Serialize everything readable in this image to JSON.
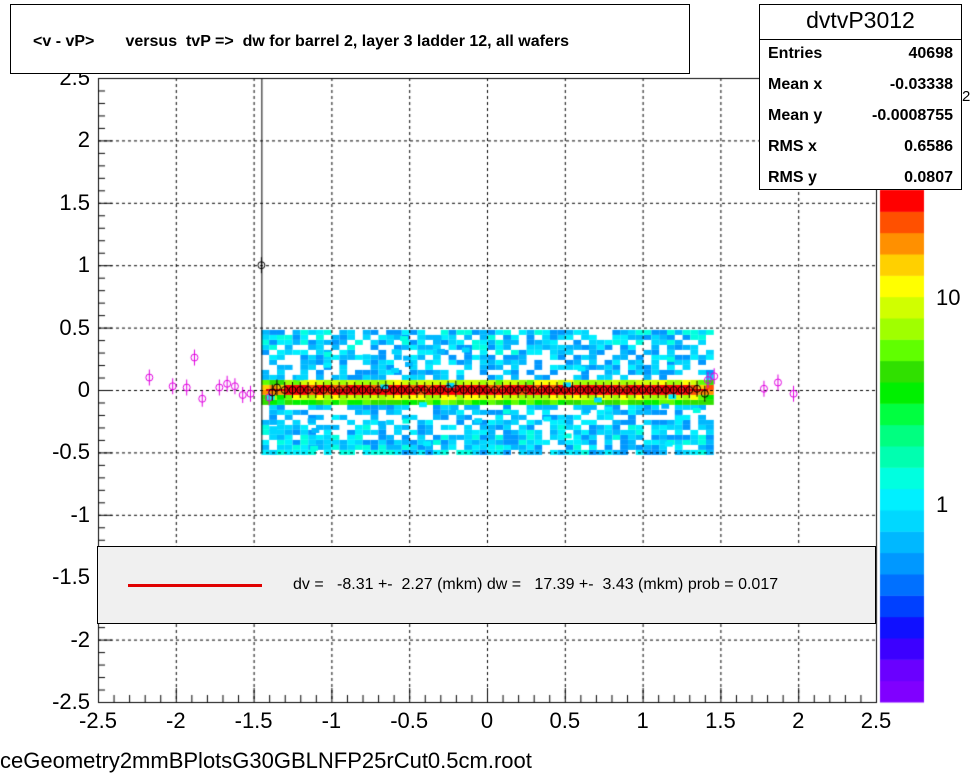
{
  "title": "<v - vP>       versus  tvP =>  dw for barrel 2, layer 3 ladder 12, all wafers",
  "stats": {
    "name": "dvtvP3012",
    "rows": [
      {
        "key": "Entries",
        "value": "40698"
      },
      {
        "key": "Mean x",
        "value": "-0.03338"
      },
      {
        "key": "Mean y",
        "value": "-0.0008755"
      },
      {
        "key": "RMS x",
        "value": "0.6586"
      },
      {
        "key": "RMS y",
        "value": "0.0807"
      }
    ]
  },
  "fit": {
    "text": "dv =   -8.31 +-  2.27 (mkm) dw =   17.39 +-  3.43 (mkm) prob = 0.017",
    "line_color": "#e00000"
  },
  "filename": "ceGeometry2mmBPlotsG30GBLNFP25rCut0.5cm.root",
  "colors": {
    "profile_black": "#000000",
    "profile_magenta": "#e000e0",
    "palette": [
      "#8000ff",
      "#6a00ff",
      "#3c00ff",
      "#1010ff",
      "#0040ff",
      "#0070ff",
      "#0098ff",
      "#00b8ff",
      "#00d8ff",
      "#00f0ff",
      "#00ffe0",
      "#00ffb0",
      "#00ff80",
      "#00ff40",
      "#00f000",
      "#30e000",
      "#60ff00",
      "#a0ff00",
      "#d0ff00",
      "#ffff00",
      "#ffd000",
      "#ff9000",
      "#ff5000",
      "#ff0000"
    ]
  },
  "chart_data": {
    "type": "heatmap",
    "title": "<v - vP>       versus  tvP =>  dw for barrel 2, layer 3 ladder 12, all wafers",
    "xlabel": "",
    "ylabel": "",
    "xlim": [
      -2.5,
      2.5
    ],
    "ylim": [
      -2.5,
      2.5
    ],
    "x_ticks": [
      "-2.5",
      "-2",
      "-1.5",
      "-1",
      "-0.5",
      "0",
      "0.5",
      "1",
      "1.5",
      "2",
      "2.5"
    ],
    "y_ticks": [
      "2.5",
      "2",
      "1.5",
      "1",
      "0.5",
      "0",
      "-0.5",
      "-1",
      "-1.5",
      "-2",
      "-2.5"
    ],
    "z_scale": "log",
    "z_ticks": [
      "1",
      "10"
    ],
    "z_tick_values": [
      1,
      10
    ],
    "z_tick_partial": "2",
    "grid": true,
    "core_band": {
      "x_range": [
        -1.45,
        1.45
      ],
      "y_center": 0.0,
      "y_halfwidth": 0.5
    },
    "profile_points_black": [
      {
        "x": -1.45,
        "y": 1.0
      },
      {
        "x": -1.38,
        "y": -0.02
      },
      {
        "x": -1.35,
        "y": 0.02
      },
      {
        "x": -1.3,
        "y": 0.0
      },
      {
        "x": -1.25,
        "y": 0.0
      },
      {
        "x": -1.2,
        "y": 0.0
      },
      {
        "x": -1.15,
        "y": 0.0
      },
      {
        "x": -1.1,
        "y": 0.0
      },
      {
        "x": -1.05,
        "y": 0.0
      },
      {
        "x": -1.0,
        "y": 0.0
      },
      {
        "x": -0.95,
        "y": 0.0
      },
      {
        "x": -0.9,
        "y": 0.0
      },
      {
        "x": -0.85,
        "y": 0.0
      },
      {
        "x": -0.8,
        "y": 0.0
      },
      {
        "x": -0.75,
        "y": 0.0
      },
      {
        "x": -0.7,
        "y": 0.0
      },
      {
        "x": -0.65,
        "y": 0.01
      },
      {
        "x": -0.6,
        "y": 0.0
      },
      {
        "x": -0.55,
        "y": 0.0
      },
      {
        "x": -0.5,
        "y": 0.0
      },
      {
        "x": -0.45,
        "y": 0.0
      },
      {
        "x": -0.4,
        "y": 0.0
      },
      {
        "x": -0.35,
        "y": 0.0
      },
      {
        "x": -0.3,
        "y": 0.0
      },
      {
        "x": -0.25,
        "y": 0.01
      },
      {
        "x": -0.2,
        "y": 0.01
      },
      {
        "x": -0.15,
        "y": 0.0
      },
      {
        "x": -0.1,
        "y": 0.0
      },
      {
        "x": -0.05,
        "y": 0.0
      },
      {
        "x": 0.0,
        "y": 0.0
      },
      {
        "x": 0.05,
        "y": 0.0
      },
      {
        "x": 0.1,
        "y": 0.0
      },
      {
        "x": 0.15,
        "y": 0.0
      },
      {
        "x": 0.2,
        "y": 0.0
      },
      {
        "x": 0.25,
        "y": 0.0
      },
      {
        "x": 0.3,
        "y": 0.0
      },
      {
        "x": 0.35,
        "y": 0.0
      },
      {
        "x": 0.4,
        "y": 0.0
      },
      {
        "x": 0.45,
        "y": 0.0
      },
      {
        "x": 0.5,
        "y": 0.0
      },
      {
        "x": 0.55,
        "y": 0.0
      },
      {
        "x": 0.6,
        "y": 0.0
      },
      {
        "x": 0.65,
        "y": 0.0
      },
      {
        "x": 0.7,
        "y": 0.0
      },
      {
        "x": 0.75,
        "y": 0.0
      },
      {
        "x": 0.8,
        "y": 0.0
      },
      {
        "x": 0.85,
        "y": 0.0
      },
      {
        "x": 0.9,
        "y": 0.0
      },
      {
        "x": 0.95,
        "y": 0.0
      },
      {
        "x": 1.0,
        "y": 0.0
      },
      {
        "x": 1.05,
        "y": 0.0
      },
      {
        "x": 1.1,
        "y": 0.0
      },
      {
        "x": 1.15,
        "y": 0.0
      },
      {
        "x": 1.2,
        "y": 0.0
      },
      {
        "x": 1.25,
        "y": 0.0
      },
      {
        "x": 1.3,
        "y": 0.0
      },
      {
        "x": 1.35,
        "y": 0.01
      },
      {
        "x": 1.4,
        "y": -0.03
      }
    ],
    "profile_points_magenta": [
      {
        "x": -2.17,
        "y": 0.1
      },
      {
        "x": -2.02,
        "y": 0.03
      },
      {
        "x": -1.93,
        "y": 0.02
      },
      {
        "x": -1.88,
        "y": 0.26
      },
      {
        "x": -1.83,
        "y": -0.07
      },
      {
        "x": -1.72,
        "y": 0.02
      },
      {
        "x": -1.67,
        "y": 0.05
      },
      {
        "x": -1.62,
        "y": 0.03
      },
      {
        "x": -1.57,
        "y": -0.04
      },
      {
        "x": -1.52,
        "y": -0.03
      },
      {
        "x": -1.4,
        "y": -0.06
      },
      {
        "x": 1.42,
        "y": 0.08
      },
      {
        "x": 1.46,
        "y": 0.11
      },
      {
        "x": 1.78,
        "y": 0.01
      },
      {
        "x": 1.87,
        "y": 0.06
      },
      {
        "x": 1.97,
        "y": -0.03
      }
    ]
  }
}
